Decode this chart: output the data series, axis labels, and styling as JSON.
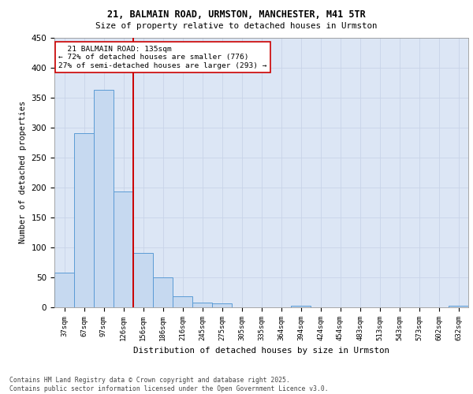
{
  "title_line1": "21, BALMAIN ROAD, URMSTON, MANCHESTER, M41 5TR",
  "title_line2": "Size of property relative to detached houses in Urmston",
  "xlabel": "Distribution of detached houses by size in Urmston",
  "ylabel": "Number of detached properties",
  "footer_line1": "Contains HM Land Registry data © Crown copyright and database right 2025.",
  "footer_line2": "Contains public sector information licensed under the Open Government Licence v3.0.",
  "annotation_line1": "  21 BALMAIN ROAD: 135sqm  ",
  "annotation_line2": "← 72% of detached houses are smaller (776)",
  "annotation_line3": "27% of semi-detached houses are larger (293) →",
  "bar_color": "#c6d9f0",
  "bar_edge_color": "#5b9bd5",
  "vline_color": "#cc0000",
  "vline_x": 3.5,
  "grid_color": "#c8d4e8",
  "bg_color": "#dce6f5",
  "categories": [
    "37sqm",
    "67sqm",
    "97sqm",
    "126sqm",
    "156sqm",
    "186sqm",
    "216sqm",
    "245sqm",
    "275sqm",
    "305sqm",
    "335sqm",
    "364sqm",
    "394sqm",
    "424sqm",
    "454sqm",
    "483sqm",
    "513sqm",
    "543sqm",
    "573sqm",
    "602sqm",
    "632sqm"
  ],
  "values": [
    58,
    290,
    362,
    193,
    91,
    50,
    18,
    8,
    6,
    0,
    0,
    0,
    3,
    0,
    0,
    0,
    0,
    0,
    0,
    0,
    3
  ],
  "ylim": [
    0,
    450
  ],
  "yticks": [
    0,
    50,
    100,
    150,
    200,
    250,
    300,
    350,
    400,
    450
  ],
  "figsize": [
    6.0,
    5.0
  ],
  "dpi": 100
}
